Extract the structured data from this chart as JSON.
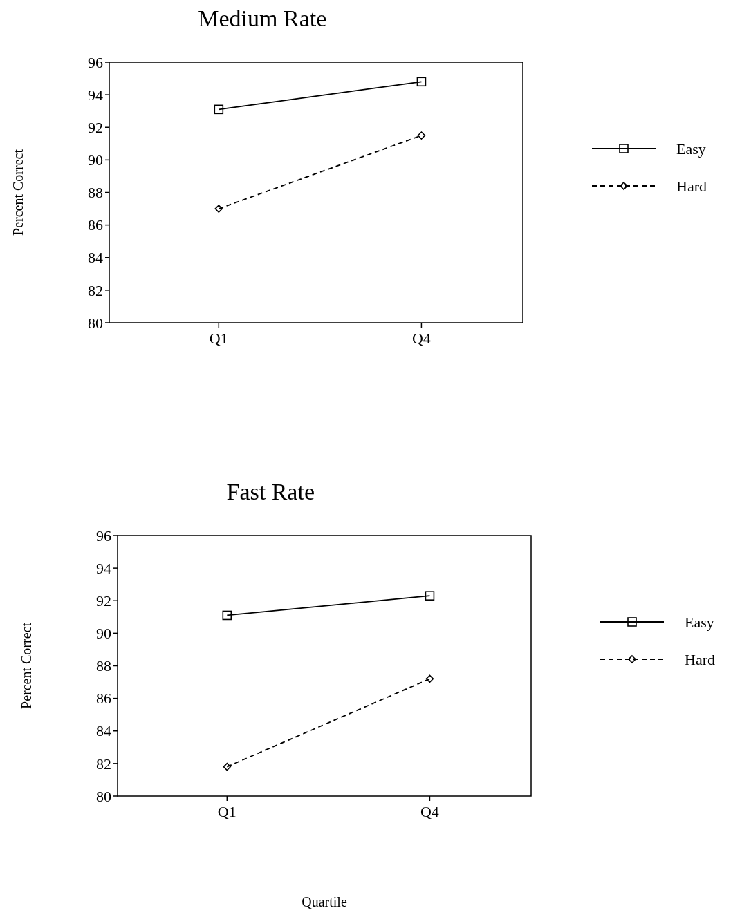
{
  "chart_data": [
    {
      "type": "line",
      "title": "Medium Rate",
      "ylabel": "Percent Correct",
      "categories": [
        "Q1",
        "Q4"
      ],
      "ylim": [
        80,
        96
      ],
      "yticks": [
        80,
        82,
        84,
        86,
        88,
        90,
        92,
        94,
        96
      ],
      "grid": false,
      "legend": "right",
      "series": [
        {
          "name": "Easy",
          "color": "#000000",
          "values": [
            93.1,
            94.8
          ],
          "marker": "square",
          "line_style": "solid"
        },
        {
          "name": "Hard",
          "color": "#000000",
          "values": [
            87.0,
            91.5
          ],
          "marker": "diamond",
          "line_style": "dashed"
        }
      ]
    },
    {
      "type": "line",
      "title": "Fast Rate",
      "ylabel": "Percent Correct",
      "xlabel": "Quartile",
      "categories": [
        "Q1",
        "Q4"
      ],
      "ylim": [
        80,
        96
      ],
      "yticks": [
        80,
        82,
        84,
        86,
        88,
        90,
        92,
        94,
        96
      ],
      "grid": false,
      "legend": "right",
      "series": [
        {
          "name": "Easy",
          "color": "#000000",
          "values": [
            91.1,
            92.3
          ],
          "marker": "square",
          "line_style": "solid"
        },
        {
          "name": "Hard",
          "color": "#000000",
          "values": [
            81.8,
            87.2
          ],
          "marker": "diamond",
          "line_style": "dashed"
        }
      ]
    }
  ]
}
